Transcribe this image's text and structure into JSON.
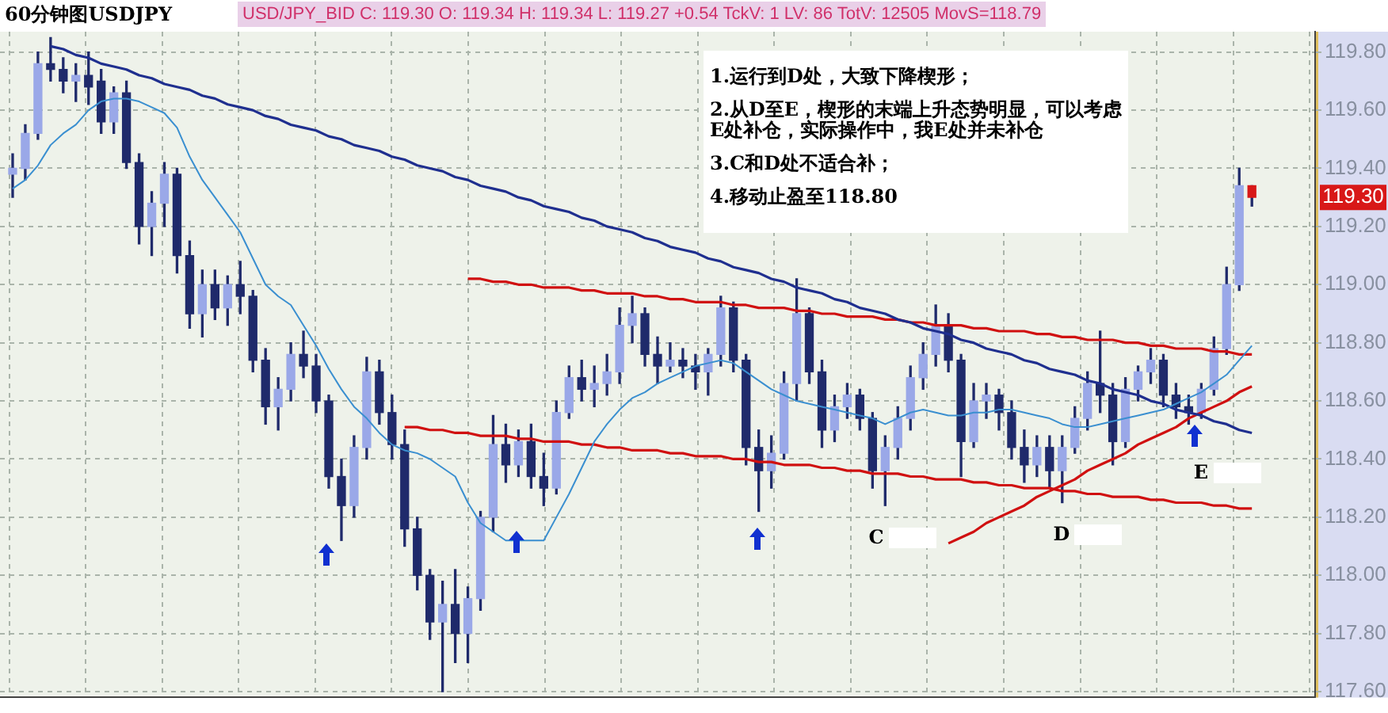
{
  "chart_data": {
    "type": "candlestick",
    "title": "60分钟图USDJPY",
    "subtitle": "USD/JPY_BID C: 119.30 O: 119.34 H: 119.34 L: 119.27 +0.54 TckV: 1 LV: 86 TotV: 12505 MovS=118.79",
    "color": "#1f2a6b",
    "colors": [
      "#9aa8e8",
      "#9aa8e8",
      "#9aa8e8",
      "#1f2a6b",
      "#1f2a6b",
      "#9aa8e8",
      "#1f2a6b",
      "#1f2a6b",
      "#9aa8e8",
      "#1f2a6b",
      "#1f2a6b",
      "#9aa8e8",
      "#9aa8e8",
      "#1f2a6b",
      "#1f2a6b",
      "#9aa8e8",
      "#1f2a6b",
      "#9aa8e8",
      "#1f2a6b",
      "#1f2a6b",
      "#1f2a6b",
      "#9aa8e8",
      "#9aa8e8",
      "#1f2a6b",
      "#1f2a6b",
      "#1f2a6b",
      "#1f2a6b",
      "#9aa8e8",
      "#9aa8e8",
      "#1f2a6b",
      "#1f2a6b",
      "#1f2a6b",
      "#1f2a6b",
      "#1f2a6b",
      "#9aa8e8",
      "#1f2a6b",
      "#9aa8e8",
      "#9aa8e8",
      "#9aa8e8",
      "#1f2a6b",
      "#9aa8e8",
      "#1f2a6b",
      "#1f2a6b",
      "#9aa8e8",
      "#9aa8e8",
      "#1f2a6b",
      "#9aa8e8",
      "#9aa8e8",
      "#9aa8e8",
      "#9aa8e8",
      "#1f2a6b",
      "#1f2a6b",
      "#9aa8e8",
      "#1f2a6b",
      "#1f2a6b",
      "#9aa8e8",
      "#9aa8e8",
      "#1f2a6b",
      "#1f2a6b",
      "#1f2a6b",
      "#9aa8e8",
      "#9aa8e8",
      "#9aa8e8",
      "#1f2a6b",
      "#1f2a6b",
      "#9aa8e8",
      "#9aa8e8",
      "#1f2a6b",
      "#1f2a6b",
      "#9aa8e8",
      "#9aa8e8",
      "#9aa8e8",
      "#9aa8e8",
      "#9aa8e8",
      "#1f2a6b",
      "#1f2a6b",
      "#9aa8e8",
      "#9aa8e8",
      "#1f2a6b",
      "#1f2a6b",
      "#1f2a6b",
      "#9aa8e8",
      "#1f2a6b",
      "#9aa8e8",
      "#9aa8e8",
      "#9aa8e8",
      "#1f2a6b",
      "#1f2a6b",
      "#9aa8e8",
      "#9aa8e8",
      "#9aa8e8",
      "#1f2a6b",
      "#1f2a6b",
      "#1f2a6b",
      "#9aa8e8",
      "#9aa8e8",
      "#9aa8e8",
      "#9aa8e8",
      "#d81818"
    ],
    "categories": [
      null,
      null,
      null,
      null,
      null,
      null,
      null,
      null,
      null,
      null,
      null,
      null,
      null,
      null,
      null,
      null,
      null,
      null,
      null,
      null,
      null,
      null,
      null,
      null,
      null,
      null,
      null,
      null,
      null,
      null,
      null,
      null,
      null,
      null,
      null,
      null,
      null,
      null,
      null,
      null,
      null,
      null,
      null,
      null,
      null,
      null,
      null,
      null,
      null,
      null,
      null,
      null,
      null,
      null,
      null,
      null,
      null,
      null,
      null,
      null,
      null,
      null,
      null,
      null,
      null,
      null,
      null,
      null,
      null,
      null,
      null,
      null,
      null,
      null,
      null,
      null,
      null,
      null,
      null,
      null,
      null,
      null,
      null,
      null,
      null,
      null,
      null,
      null,
      null,
      null,
      null,
      null,
      null,
      null,
      null,
      null,
      null,
      null,
      null
    ],
    "ohlc": [
      [
        119.38,
        119.45,
        119.3,
        119.4
      ],
      [
        119.4,
        119.55,
        119.36,
        119.52
      ],
      [
        119.52,
        119.8,
        119.5,
        119.76
      ],
      [
        119.76,
        119.85,
        119.7,
        119.74
      ],
      [
        119.74,
        119.78,
        119.66,
        119.7
      ],
      [
        119.7,
        119.76,
        119.63,
        119.72
      ],
      [
        119.72,
        119.8,
        119.62,
        119.68
      ],
      [
        119.7,
        119.74,
        119.52,
        119.56
      ],
      [
        119.56,
        119.68,
        119.52,
        119.66
      ],
      [
        119.66,
        119.7,
        119.4,
        119.42
      ],
      [
        119.42,
        119.45,
        119.14,
        119.2
      ],
      [
        119.2,
        119.32,
        119.1,
        119.28
      ],
      [
        119.28,
        119.42,
        119.2,
        119.38
      ],
      [
        119.38,
        119.4,
        119.04,
        119.1
      ],
      [
        119.1,
        119.15,
        118.85,
        118.9
      ],
      [
        118.9,
        119.05,
        118.82,
        119.0
      ],
      [
        119.0,
        119.05,
        118.88,
        118.92
      ],
      [
        118.92,
        119.03,
        118.86,
        119.0
      ],
      [
        119.0,
        119.08,
        118.9,
        118.96
      ],
      [
        118.96,
        118.98,
        118.7,
        118.74
      ],
      [
        118.74,
        118.78,
        118.52,
        118.58
      ],
      [
        118.58,
        118.68,
        118.5,
        118.64
      ],
      [
        118.64,
        118.8,
        118.6,
        118.76
      ],
      [
        118.76,
        118.84,
        118.68,
        118.72
      ],
      [
        118.72,
        118.76,
        118.56,
        118.6
      ],
      [
        118.6,
        118.62,
        118.3,
        118.34
      ],
      [
        118.34,
        118.4,
        118.12,
        118.24
      ],
      [
        118.24,
        118.48,
        118.2,
        118.44
      ],
      [
        118.44,
        118.75,
        118.4,
        118.7
      ],
      [
        118.7,
        118.74,
        118.52,
        118.56
      ],
      [
        118.56,
        118.62,
        118.4,
        118.45
      ],
      [
        118.45,
        118.5,
        118.1,
        118.16
      ],
      [
        118.16,
        118.2,
        117.95,
        118.0
      ],
      [
        118.0,
        118.02,
        117.78,
        117.84
      ],
      [
        117.84,
        117.98,
        117.6,
        117.9
      ],
      [
        117.9,
        118.02,
        117.7,
        117.8
      ],
      [
        117.8,
        117.96,
        117.7,
        117.92
      ],
      [
        117.92,
        118.22,
        117.88,
        118.2
      ],
      [
        118.2,
        118.55,
        118.15,
        118.45
      ],
      [
        118.45,
        118.52,
        118.32,
        118.38
      ],
      [
        118.38,
        118.5,
        118.34,
        118.46
      ],
      [
        118.46,
        118.52,
        118.3,
        118.34
      ],
      [
        118.34,
        118.42,
        118.24,
        118.3
      ],
      [
        118.3,
        118.6,
        118.28,
        118.56
      ],
      [
        118.56,
        118.72,
        118.54,
        118.68
      ],
      [
        118.68,
        118.74,
        118.6,
        118.64
      ],
      [
        118.64,
        118.72,
        118.58,
        118.66
      ],
      [
        118.66,
        118.76,
        118.62,
        118.7
      ],
      [
        118.7,
        118.92,
        118.66,
        118.86
      ],
      [
        118.86,
        118.96,
        118.8,
        118.9
      ],
      [
        118.9,
        118.92,
        118.72,
        118.76
      ],
      [
        118.76,
        118.82,
        118.66,
        118.72
      ],
      [
        118.72,
        118.8,
        118.7,
        118.74
      ],
      [
        118.74,
        118.78,
        118.68,
        118.72
      ],
      [
        118.72,
        118.76,
        118.64,
        118.7
      ],
      [
        118.7,
        118.78,
        118.62,
        118.76
      ],
      [
        118.76,
        118.96,
        118.72,
        118.92
      ],
      [
        118.92,
        118.94,
        118.7,
        118.74
      ],
      [
        118.74,
        118.76,
        118.38,
        118.44
      ],
      [
        118.44,
        118.5,
        118.22,
        118.36
      ],
      [
        118.36,
        118.48,
        118.3,
        118.42
      ],
      [
        118.42,
        118.7,
        118.4,
        118.66
      ],
      [
        118.66,
        119.02,
        118.6,
        118.9
      ],
      [
        118.9,
        118.92,
        118.66,
        118.7
      ],
      [
        118.7,
        118.74,
        118.44,
        118.5
      ],
      [
        118.5,
        118.62,
        118.46,
        118.58
      ],
      [
        118.58,
        118.66,
        118.54,
        118.62
      ],
      [
        118.62,
        118.64,
        118.5,
        118.54
      ],
      [
        118.54,
        118.56,
        118.3,
        118.36
      ],
      [
        118.36,
        118.48,
        118.24,
        118.44
      ],
      [
        118.44,
        118.58,
        118.4,
        118.54
      ],
      [
        118.54,
        118.72,
        118.5,
        118.68
      ],
      [
        118.68,
        118.8,
        118.64,
        118.76
      ],
      [
        118.76,
        118.93,
        118.72,
        118.86
      ],
      [
        118.86,
        118.9,
        118.7,
        118.74
      ],
      [
        118.74,
        118.76,
        118.34,
        118.46
      ],
      [
        118.46,
        118.66,
        118.44,
        118.6
      ],
      [
        118.6,
        118.66,
        118.54,
        118.62
      ],
      [
        118.62,
        118.64,
        118.5,
        118.56
      ],
      [
        118.56,
        118.6,
        118.4,
        118.44
      ],
      [
        118.44,
        118.5,
        118.32,
        118.38
      ],
      [
        118.38,
        118.48,
        118.34,
        118.44
      ],
      [
        118.44,
        118.48,
        118.3,
        118.36
      ],
      [
        118.36,
        118.48,
        118.25,
        118.44
      ],
      [
        118.44,
        118.58,
        118.42,
        118.54
      ],
      [
        118.54,
        118.7,
        118.5,
        118.66
      ],
      [
        118.66,
        118.84,
        118.56,
        118.62
      ],
      [
        118.62,
        118.66,
        118.38,
        118.46
      ],
      [
        118.46,
        118.68,
        118.44,
        118.64
      ],
      [
        118.64,
        118.72,
        118.6,
        118.7
      ],
      [
        118.7,
        118.78,
        118.66,
        118.74
      ],
      [
        118.74,
        118.76,
        118.58,
        118.62
      ],
      [
        118.62,
        118.66,
        118.54,
        118.58
      ],
      [
        118.58,
        118.62,
        118.52,
        118.56
      ],
      [
        118.56,
        118.66,
        118.54,
        118.64
      ],
      [
        118.64,
        118.82,
        118.62,
        118.78
      ],
      [
        118.78,
        119.06,
        118.76,
        119.0
      ],
      [
        119.0,
        119.4,
        118.98,
        119.34
      ],
      [
        119.34,
        119.34,
        119.27,
        119.3
      ]
    ],
    "series": [
      {
        "type": "line",
        "color": "#3a8fd0",
        "values": [
          119.33,
          119.36,
          119.41,
          119.48,
          119.52,
          119.55,
          119.6,
          119.63,
          119.64,
          119.64,
          119.63,
          119.61,
          119.59,
          119.54,
          119.44,
          119.36,
          119.3,
          119.24,
          119.18,
          119.09,
          119.0,
          118.96,
          118.93,
          118.86,
          118.79,
          118.71,
          118.64,
          118.58,
          118.54,
          118.49,
          118.45,
          118.43,
          118.42,
          118.4,
          118.37,
          118.34,
          118.25,
          118.18,
          118.15,
          118.12,
          118.12,
          118.12,
          118.12,
          118.2,
          118.28,
          118.37,
          118.46,
          118.52,
          118.57,
          118.61,
          118.63,
          118.66,
          118.68,
          118.7,
          118.72,
          118.73,
          118.74,
          118.73,
          118.7,
          118.67,
          118.64,
          118.62,
          118.6,
          118.59,
          118.58,
          118.57,
          118.56,
          118.55,
          118.54,
          118.52,
          118.54,
          118.56,
          118.57,
          118.56,
          118.55,
          118.55,
          118.56,
          118.56,
          118.57,
          118.57,
          118.56,
          118.55,
          118.54,
          118.52,
          118.51,
          118.51,
          118.52,
          118.53,
          118.54,
          118.55,
          118.56,
          118.57,
          118.59,
          118.61,
          118.63,
          118.66,
          118.69,
          118.74,
          118.79
        ]
      },
      {
        "type": "line",
        "color": "#1f2f8f",
        "values": [
          null,
          null,
          null,
          119.82,
          119.81,
          119.79,
          119.78,
          119.76,
          119.75,
          119.74,
          119.72,
          119.71,
          119.69,
          119.68,
          119.67,
          119.65,
          119.64,
          119.62,
          119.61,
          119.6,
          119.58,
          119.57,
          119.55,
          119.54,
          119.53,
          119.51,
          119.5,
          119.48,
          119.47,
          119.46,
          119.44,
          119.43,
          119.41,
          119.4,
          119.39,
          119.37,
          119.36,
          119.34,
          119.33,
          119.32,
          119.3,
          119.29,
          119.27,
          119.26,
          119.25,
          119.23,
          119.22,
          119.2,
          119.19,
          119.18,
          119.16,
          119.15,
          119.13,
          119.12,
          119.11,
          119.09,
          119.08,
          119.06,
          119.05,
          119.04,
          119.02,
          119.01,
          118.99,
          118.98,
          118.97,
          118.95,
          118.94,
          118.92,
          118.91,
          118.9,
          118.88,
          118.87,
          118.85,
          118.84,
          118.83,
          118.81,
          118.8,
          118.78,
          118.77,
          118.76,
          118.74,
          118.73,
          118.71,
          118.7,
          118.69,
          118.67,
          118.66,
          118.64,
          118.63,
          118.62,
          118.6,
          118.59,
          118.57,
          118.56,
          118.55,
          118.53,
          118.52,
          118.5,
          118.49
        ]
      },
      {
        "type": "line",
        "color": "#d01010",
        "values": [
          null,
          null,
          null,
          null,
          null,
          null,
          null,
          null,
          null,
          null,
          null,
          null,
          null,
          null,
          null,
          null,
          null,
          null,
          null,
          null,
          null,
          null,
          null,
          null,
          null,
          null,
          null,
          null,
          null,
          null,
          null,
          null,
          null,
          null,
          null,
          null,
          119.02,
          119.02,
          119.01,
          119.01,
          119.0,
          119.0,
          118.99,
          118.99,
          118.99,
          118.98,
          118.98,
          118.97,
          118.97,
          118.97,
          118.96,
          118.96,
          118.95,
          118.95,
          118.94,
          118.94,
          118.94,
          118.93,
          118.93,
          118.92,
          118.92,
          118.92,
          118.91,
          118.91,
          118.9,
          118.9,
          118.89,
          118.89,
          118.89,
          118.88,
          118.88,
          118.87,
          118.87,
          118.86,
          118.86,
          118.86,
          118.85,
          118.85,
          118.84,
          118.84,
          118.84,
          118.83,
          118.83,
          118.82,
          118.82,
          118.81,
          118.81,
          118.81,
          118.8,
          118.8,
          118.79,
          118.79,
          118.78,
          118.78,
          118.78,
          118.77,
          118.77,
          118.76,
          118.76
        ]
      },
      {
        "type": "line",
        "color": "#d01010",
        "values": [
          null,
          null,
          null,
          null,
          null,
          null,
          null,
          null,
          null,
          null,
          null,
          null,
          null,
          null,
          null,
          null,
          null,
          null,
          null,
          null,
          null,
          null,
          null,
          null,
          null,
          null,
          null,
          null,
          null,
          null,
          null,
          118.51,
          118.51,
          118.5,
          118.5,
          118.49,
          118.49,
          118.48,
          118.48,
          118.48,
          118.47,
          118.47,
          118.46,
          118.46,
          118.46,
          118.45,
          118.45,
          118.44,
          118.44,
          118.43,
          118.43,
          118.43,
          118.42,
          118.42,
          118.41,
          118.41,
          118.41,
          118.4,
          118.4,
          118.39,
          118.39,
          118.38,
          118.38,
          118.38,
          118.37,
          118.37,
          118.36,
          118.36,
          118.35,
          118.35,
          118.35,
          118.34,
          118.34,
          118.33,
          118.33,
          118.33,
          118.32,
          118.32,
          118.31,
          118.31,
          118.3,
          118.3,
          118.3,
          118.29,
          118.29,
          118.28,
          118.28,
          118.27,
          118.27,
          118.27,
          118.26,
          118.26,
          118.25,
          118.25,
          118.25,
          118.24,
          118.24,
          118.23,
          118.23
        ]
      },
      {
        "type": "line",
        "color": "#d01010",
        "values": [
          null,
          null,
          null,
          null,
          null,
          null,
          null,
          null,
          null,
          null,
          null,
          null,
          null,
          null,
          null,
          null,
          null,
          null,
          null,
          null,
          null,
          null,
          null,
          null,
          null,
          null,
          null,
          null,
          null,
          null,
          null,
          null,
          null,
          null,
          null,
          null,
          null,
          null,
          null,
          null,
          null,
          null,
          null,
          null,
          null,
          null,
          null,
          null,
          null,
          null,
          null,
          null,
          null,
          null,
          null,
          null,
          null,
          null,
          null,
          null,
          null,
          null,
          null,
          null,
          null,
          null,
          null,
          null,
          null,
          null,
          null,
          null,
          null,
          null,
          118.11,
          118.13,
          118.15,
          118.18,
          118.2,
          118.22,
          118.24,
          118.27,
          118.29,
          118.31,
          118.33,
          118.36,
          118.38,
          118.4,
          118.42,
          118.45,
          118.47,
          118.49,
          118.51,
          118.54,
          118.56,
          118.58,
          118.6,
          118.63,
          118.65
        ]
      }
    ],
    "ylim": [
      117.58,
      119.87
    ],
    "yticks": [
      {
        "value": 117.6,
        "label": "117.60"
      },
      {
        "value": 117.8,
        "label": "117.80"
      },
      {
        "value": 118,
        "label": "118.00"
      },
      {
        "value": 118.2,
        "label": "118.20"
      },
      {
        "value": 118.4,
        "label": "118.40"
      },
      {
        "value": 118.6,
        "label": "118.60"
      },
      {
        "value": 118.8,
        "label": "118.80"
      },
      {
        "value": 119,
        "label": "119.00"
      },
      {
        "value": 119.2,
        "label": "119.20"
      },
      {
        "value": 119.4,
        "label": "119.40"
      },
      {
        "value": 119.6,
        "label": "119.60"
      },
      {
        "value": 119.8,
        "label": "119.80"
      }
    ],
    "tick_labels": "y",
    "grid": true,
    "marker": "none",
    "line_style": "solid",
    "annotations": [
      "1.运行到D处，大致下降楔形；",
      "2.从D至E，楔形的末端上升态势明显，可以考虑E处补仓，实际操作中，我E处并未补仓",
      "3.C和D处不适合补；",
      "4.移动止盈至118.80",
      "C",
      "D",
      "E",
      "119.30"
    ]
  }
}
